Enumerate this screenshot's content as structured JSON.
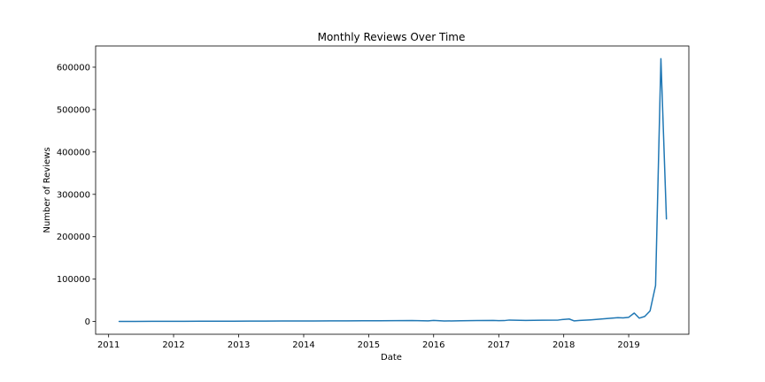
{
  "chart_data": {
    "type": "line",
    "title": "Monthly Reviews Over Time",
    "xlabel": "Date",
    "ylabel": "Number of Reviews",
    "xlim": [
      "2010-10-20",
      "2019-12-05"
    ],
    "ylim": [
      -30000,
      650000
    ],
    "x_ticks": [
      "2011",
      "2012",
      "2013",
      "2014",
      "2015",
      "2016",
      "2017",
      "2018",
      "2019"
    ],
    "y_ticks": [
      0,
      100000,
      200000,
      300000,
      400000,
      500000,
      600000
    ],
    "y_tick_labels": [
      "0",
      "100000",
      "200000",
      "300000",
      "400000",
      "500000",
      "600000"
    ],
    "grid": false,
    "colors": {
      "line": "#1f77b4"
    },
    "series": [
      {
        "x": [
          "2011-03",
          "2011-06",
          "2011-09",
          "2011-12",
          "2012-03",
          "2012-06",
          "2012-09",
          "2012-12",
          "2013-03",
          "2013-06",
          "2013-09",
          "2013-12",
          "2014-03",
          "2014-06",
          "2014-09",
          "2014-12",
          "2015-03",
          "2015-06",
          "2015-09",
          "2015-12",
          "2016-01",
          "2016-03",
          "2016-06",
          "2016-09",
          "2016-12",
          "2017-01",
          "2017-02",
          "2017-03",
          "2017-06",
          "2017-09",
          "2017-12",
          "2018-01",
          "2018-02",
          "2018-03",
          "2018-04",
          "2018-06",
          "2018-08",
          "2018-10",
          "2018-11",
          "2018-12",
          "2019-01",
          "2019-02",
          "2019-03",
          "2019-04",
          "2019-05",
          "2019-06",
          "2019-07",
          "2019-08"
        ],
        "y": [
          200,
          300,
          400,
          500,
          600,
          700,
          800,
          900,
          1000,
          1100,
          1200,
          1300,
          1400,
          1500,
          1600,
          1700,
          1800,
          2000,
          2200,
          1500,
          2500,
          1200,
          1800,
          2200,
          2600,
          2000,
          2200,
          3500,
          2500,
          3000,
          3500,
          5000,
          6000,
          1500,
          2500,
          4000,
          6000,
          8000,
          9000,
          8500,
          10000,
          20000,
          8000,
          12000,
          25000,
          85000,
          620000,
          242000
        ]
      }
    ]
  }
}
